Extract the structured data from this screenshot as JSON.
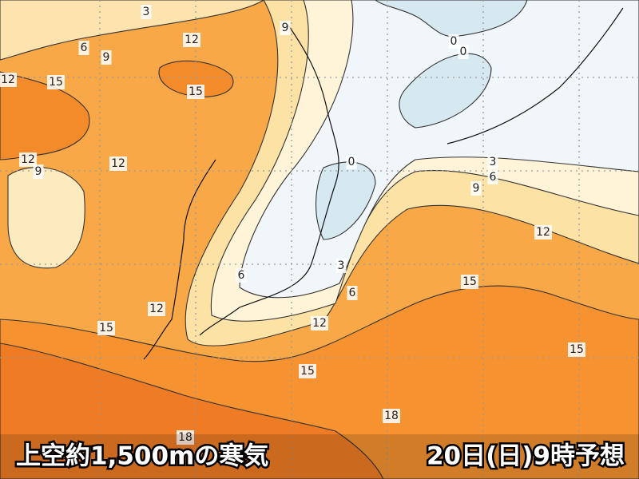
{
  "map": {
    "contour_labels": [
      3,
      6,
      9,
      12,
      12,
      15,
      15,
      9,
      0,
      0,
      12,
      9,
      12,
      0,
      3,
      6,
      9,
      12,
      6,
      3,
      6,
      15,
      12,
      12,
      15,
      15,
      15,
      18,
      18
    ],
    "caption_left": "上空約1,500mの寒気",
    "caption_right": "20日(日)9時予想"
  }
}
